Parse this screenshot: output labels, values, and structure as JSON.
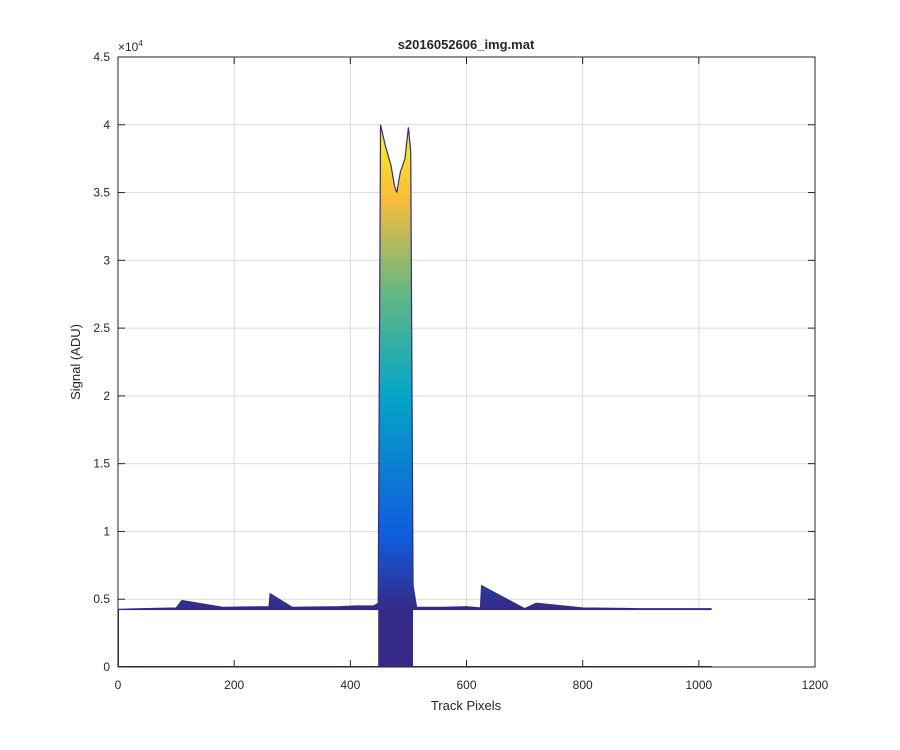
{
  "chart_data": {
    "type": "area",
    "title": "s2016052606_img.mat",
    "xlabel": "Track Pixels",
    "ylabel": "Signal (ADU)",
    "xlim": [
      0,
      1200
    ],
    "ylim": [
      0,
      45000
    ],
    "y_exponent_label": "×10",
    "y_exponent_power": "4",
    "x_ticks": [
      0,
      200,
      400,
      600,
      800,
      1000,
      1200
    ],
    "x_tick_labels": [
      "0",
      "200",
      "400",
      "600",
      "800",
      "1000",
      "1200"
    ],
    "y_ticks": [
      0,
      5000,
      10000,
      15000,
      20000,
      25000,
      30000,
      35000,
      40000,
      45000
    ],
    "y_tick_labels": [
      "0",
      "0.5",
      "1",
      "1.5",
      "2",
      "2.5",
      "3",
      "3.5",
      "4",
      "4.5"
    ],
    "grid": true,
    "colormap": "parula",
    "colors": {
      "base": "#352a87",
      "low": "#0f5cdd",
      "mid": "#06a7c6",
      "midhigh": "#62b883",
      "high": "#f9bc39",
      "top": "#f9fb0e"
    },
    "series": [
      {
        "x": [
          0,
          40,
          100,
          110,
          180,
          260,
          262,
          300,
          380,
          410,
          440,
          448,
          452,
          460,
          470,
          476,
          480,
          486,
          494,
          500,
          504,
          508,
          514,
          560,
          600,
          624,
          626,
          700,
          720,
          800,
          900,
          1000,
          1022
        ],
        "y": [
          4250,
          4300,
          4350,
          4900,
          4400,
          4450,
          5400,
          4400,
          4450,
          4500,
          4500,
          4700,
          40000,
          38500,
          37000,
          35500,
          35000,
          36500,
          37500,
          39800,
          38000,
          6000,
          4400,
          4400,
          4450,
          4350,
          6000,
          4300,
          4700,
          4350,
          4300,
          4300,
          4300
        ]
      }
    ]
  }
}
